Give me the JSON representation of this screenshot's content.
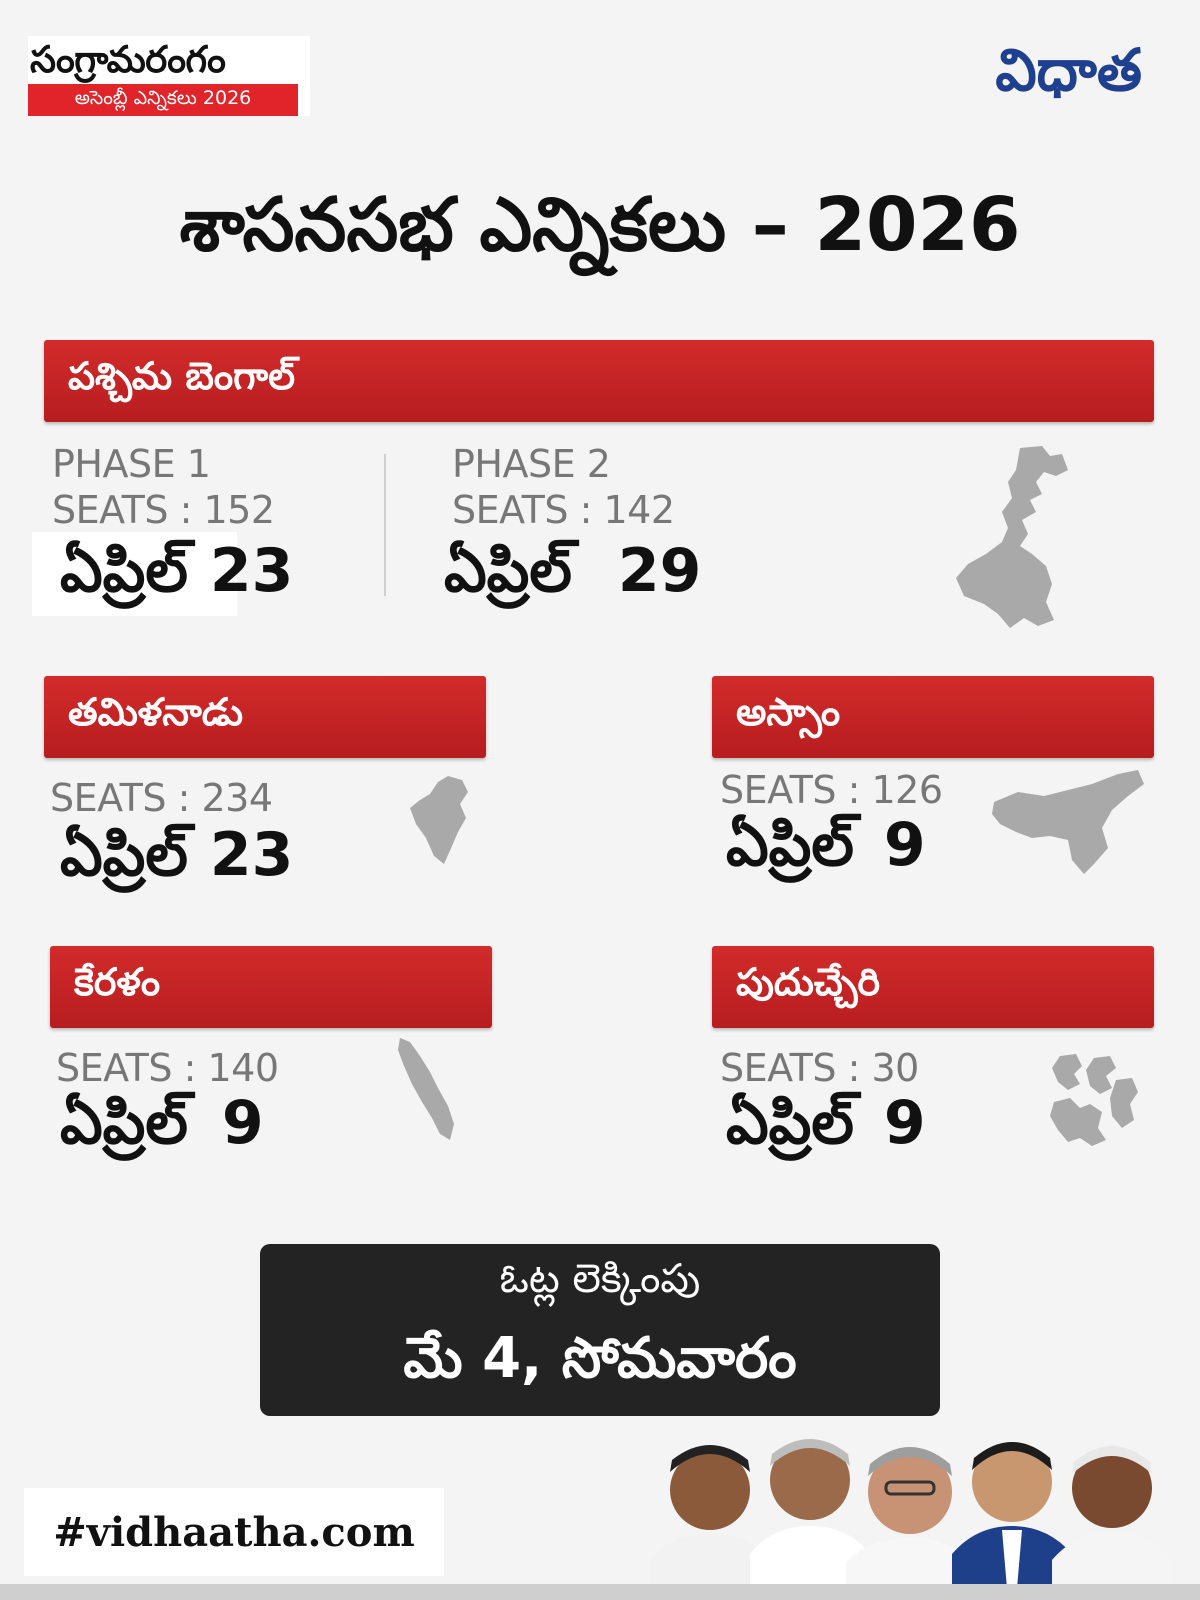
{
  "brand": {
    "name": "సంగ్రామరంగం",
    "subtitle": "అసెంబ్లీ ఎన్నికలు 2026"
  },
  "logo": "విధాత",
  "title": "శాసనసభ ఎన్నికలు – 2026",
  "west_bengal": {
    "name": "పశ్చిమ బెంగాల్",
    "phase1": {
      "label": "PHASE 1",
      "seats": "SEATS : 152",
      "month": "ఏప్రిల్",
      "day": "23"
    },
    "phase2": {
      "label": "PHASE 2",
      "seats": "SEATS : 142",
      "month": "ఏప్రిల్",
      "day": "29"
    }
  },
  "tamil_nadu": {
    "name": "తమిళనాడు",
    "seats": "SEATS : 234",
    "month": "ఏప్రిల్",
    "day": "23"
  },
  "assam": {
    "name": "అస్సాం",
    "seats": "SEATS : 126",
    "month": "ఏప్రిల్",
    "day": "9"
  },
  "kerala": {
    "name": "కేరళం",
    "seats": "SEATS : 140",
    "month": "ఏప్రిల్",
    "day": "9"
  },
  "puducherry": {
    "name": "పుదుచ్చేరి",
    "seats": "SEATS : 30",
    "month": "ఏప్రిల్",
    "day": "9"
  },
  "counting": {
    "label": "ఓట్ల లెక్కింపు",
    "date": "మే 4, సోమవారం"
  },
  "hashtag": "#vidhaatha.com",
  "colors": {
    "accent_red": "#c62828",
    "logo_blue": "#1f3f8f",
    "dark_box": "#232323"
  }
}
